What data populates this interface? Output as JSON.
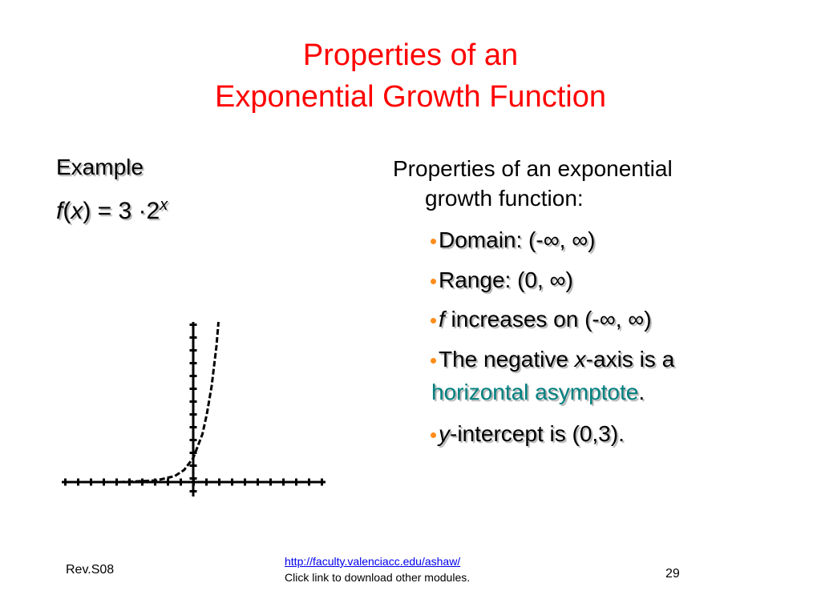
{
  "title": {
    "line1": "Properties of an",
    "line2": "Exponential Growth Function"
  },
  "left": {
    "heading": "Example",
    "formula": [
      "f",
      "(",
      "x",
      ") = 3 ·2",
      "x"
    ]
  },
  "right": {
    "intro": [
      "Properties of an exponential",
      "growth function:"
    ],
    "bullets": [
      [
        "Domain: (-∞, ∞)"
      ],
      [
        "Range: (0, ∞)"
      ],
      [
        "f",
        " increases on (-∞, ∞)"
      ],
      [
        "The negative ",
        "x",
        "-axis is a",
        "horizontal asymptote",
        "."
      ],
      [
        "y",
        "-intercept is (0,3)."
      ]
    ]
  },
  "footer": {
    "revision": "Rev.S08",
    "link": "http://faculty.valenciacc.edu/ashaw/",
    "note": "Click link to download other modules.",
    "page": "29"
  }
}
